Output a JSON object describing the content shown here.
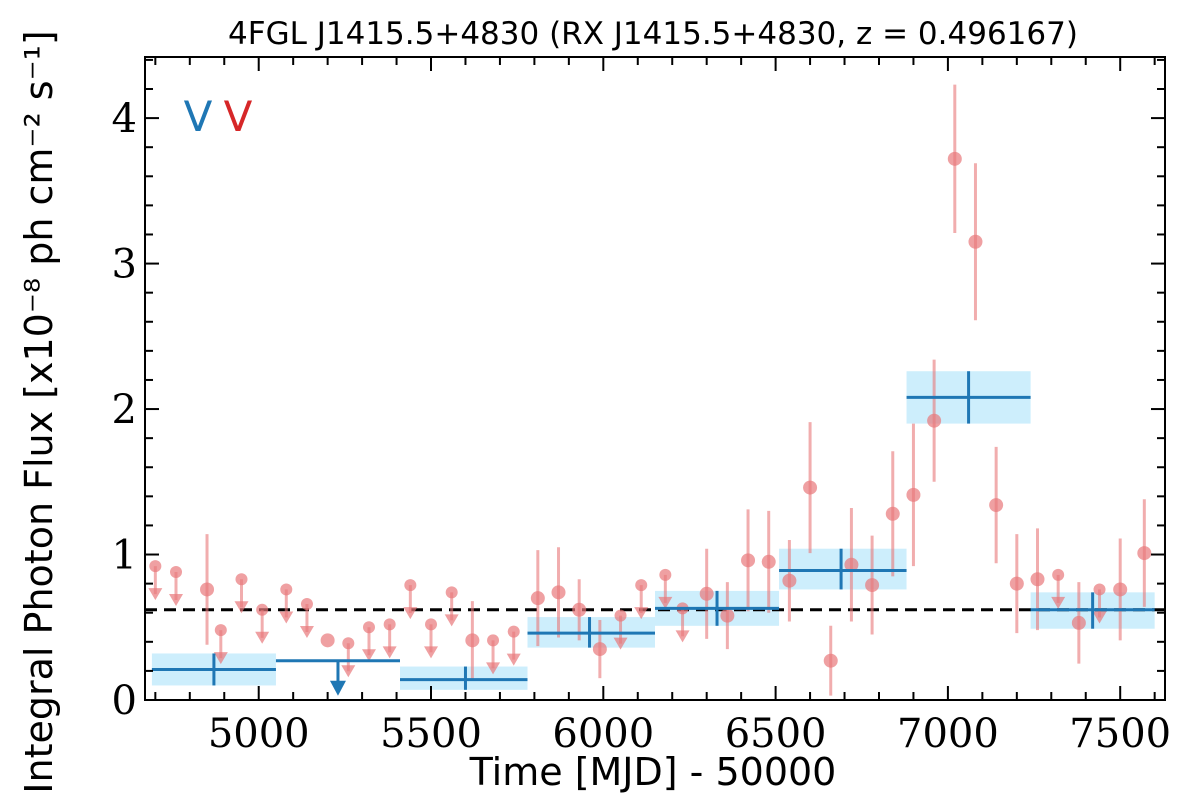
{
  "chart_data": {
    "type": "scatter",
    "title": "4FGL J1415.5+4830 (RX J1415.5+4830, z = 0.496167)",
    "xlabel": "Time [MJD] - 50000",
    "ylabel": "Integral Photon Flux [x10⁻⁸ ph cm⁻² s⁻¹]",
    "xlim": [
      4670,
      7630
    ],
    "ylim": [
      0,
      4.42
    ],
    "x_ticks": [
      5000,
      5500,
      6000,
      6500,
      7000,
      7500
    ],
    "x_tick_labels": [
      "5000",
      "5500",
      "6000",
      "6500",
      "7000",
      "7500"
    ],
    "y_ticks": [
      0,
      1,
      2,
      3,
      4
    ],
    "y_tick_labels": [
      "0",
      "1",
      "2",
      "3",
      "4"
    ],
    "grid": false,
    "markers": [
      {
        "text": "V",
        "color": "#1f77b4"
      },
      {
        "text": "V",
        "color": "#d62728"
      }
    ],
    "mean_flux": 0.62,
    "series": [
      {
        "kind": "detections",
        "color": "#e8787a",
        "points": [
          {
            "x": 4850,
            "y": 0.76,
            "err": 0.38
          },
          {
            "x": 5200,
            "y": 0.41,
            "err": 0.0
          },
          {
            "x": 5620,
            "y": 0.41,
            "err": 0.27
          },
          {
            "x": 5810,
            "y": 0.7,
            "err": 0.33
          },
          {
            "x": 5870,
            "y": 0.74,
            "err": 0.31
          },
          {
            "x": 5930,
            "y": 0.62,
            "err": 0.21
          },
          {
            "x": 5990,
            "y": 0.35,
            "err": 0.2
          },
          {
            "x": 6300,
            "y": 0.73,
            "err": 0.31
          },
          {
            "x": 6360,
            "y": 0.58,
            "err": 0.23
          },
          {
            "x": 6420,
            "y": 0.96,
            "err": 0.35
          },
          {
            "x": 6480,
            "y": 0.95,
            "err": 0.35
          },
          {
            "x": 6540,
            "y": 0.82,
            "err": 0.28
          },
          {
            "x": 6600,
            "y": 1.46,
            "err": 0.45
          },
          {
            "x": 6660,
            "y": 0.27,
            "err": 0.24
          },
          {
            "x": 6720,
            "y": 0.93,
            "err": 0.39
          },
          {
            "x": 6780,
            "y": 0.79,
            "err": 0.34
          },
          {
            "x": 6840,
            "y": 1.28,
            "err": 0.43
          },
          {
            "x": 6900,
            "y": 1.41,
            "err": 0.49
          },
          {
            "x": 6960,
            "y": 1.92,
            "err": 0.42
          },
          {
            "x": 7020,
            "y": 3.72,
            "err": 0.51
          },
          {
            "x": 7080,
            "y": 3.15,
            "err": 0.54
          },
          {
            "x": 7140,
            "y": 1.34,
            "err": 0.4
          },
          {
            "x": 7200,
            "y": 0.8,
            "err": 0.34
          },
          {
            "x": 7260,
            "y": 0.83,
            "err": 0.35
          },
          {
            "x": 7380,
            "y": 0.53,
            "err": 0.28
          },
          {
            "x": 7500,
            "y": 0.76,
            "err": 0.35
          },
          {
            "x": 7570,
            "y": 1.01,
            "err": 0.37
          }
        ]
      },
      {
        "kind": "upper_limits",
        "color": "#e8787a",
        "points": [
          {
            "x": 4700,
            "y": 0.92
          },
          {
            "x": 4760,
            "y": 0.88
          },
          {
            "x": 4890,
            "y": 0.48
          },
          {
            "x": 4950,
            "y": 0.83
          },
          {
            "x": 5010,
            "y": 0.62
          },
          {
            "x": 5080,
            "y": 0.76
          },
          {
            "x": 5140,
            "y": 0.66
          },
          {
            "x": 5260,
            "y": 0.39
          },
          {
            "x": 5320,
            "y": 0.5
          },
          {
            "x": 5380,
            "y": 0.52
          },
          {
            "x": 5440,
            "y": 0.79
          },
          {
            "x": 5500,
            "y": 0.52
          },
          {
            "x": 5560,
            "y": 0.74
          },
          {
            "x": 5680,
            "y": 0.41
          },
          {
            "x": 5740,
            "y": 0.47
          },
          {
            "x": 6050,
            "y": 0.58
          },
          {
            "x": 6110,
            "y": 0.79
          },
          {
            "x": 6180,
            "y": 0.86
          },
          {
            "x": 6230,
            "y": 0.63
          },
          {
            "x": 7320,
            "y": 0.86
          },
          {
            "x": 7440,
            "y": 0.76
          }
        ]
      },
      {
        "kind": "binned",
        "color": "#1f77b4",
        "band_color": "#cdeefc",
        "bins": [
          {
            "x0": 4690,
            "x1": 5050,
            "xc": 4870,
            "y": 0.21,
            "lo": 0.1,
            "hi": 0.32,
            "upper_limit": false
          },
          {
            "x0": 5050,
            "x1": 5410,
            "xc": 5230,
            "y": 0.27,
            "lo": null,
            "hi": null,
            "upper_limit": true
          },
          {
            "x0": 5410,
            "x1": 5780,
            "xc": 5600,
            "y": 0.14,
            "lo": 0.07,
            "hi": 0.23,
            "upper_limit": false
          },
          {
            "x0": 5780,
            "x1": 6150,
            "xc": 5960,
            "y": 0.46,
            "lo": 0.36,
            "hi": 0.57,
            "upper_limit": false
          },
          {
            "x0": 6150,
            "x1": 6510,
            "xc": 6330,
            "y": 0.63,
            "lo": 0.51,
            "hi": 0.75,
            "upper_limit": false
          },
          {
            "x0": 6510,
            "x1": 6880,
            "xc": 6690,
            "y": 0.89,
            "lo": 0.76,
            "hi": 1.04,
            "upper_limit": false
          },
          {
            "x0": 6880,
            "x1": 7240,
            "xc": 7060,
            "y": 2.08,
            "lo": 1.9,
            "hi": 2.26,
            "upper_limit": false
          },
          {
            "x0": 7240,
            "x1": 7600,
            "xc": 7420,
            "y": 0.62,
            "lo": 0.49,
            "hi": 0.74,
            "upper_limit": false
          }
        ]
      }
    ]
  }
}
